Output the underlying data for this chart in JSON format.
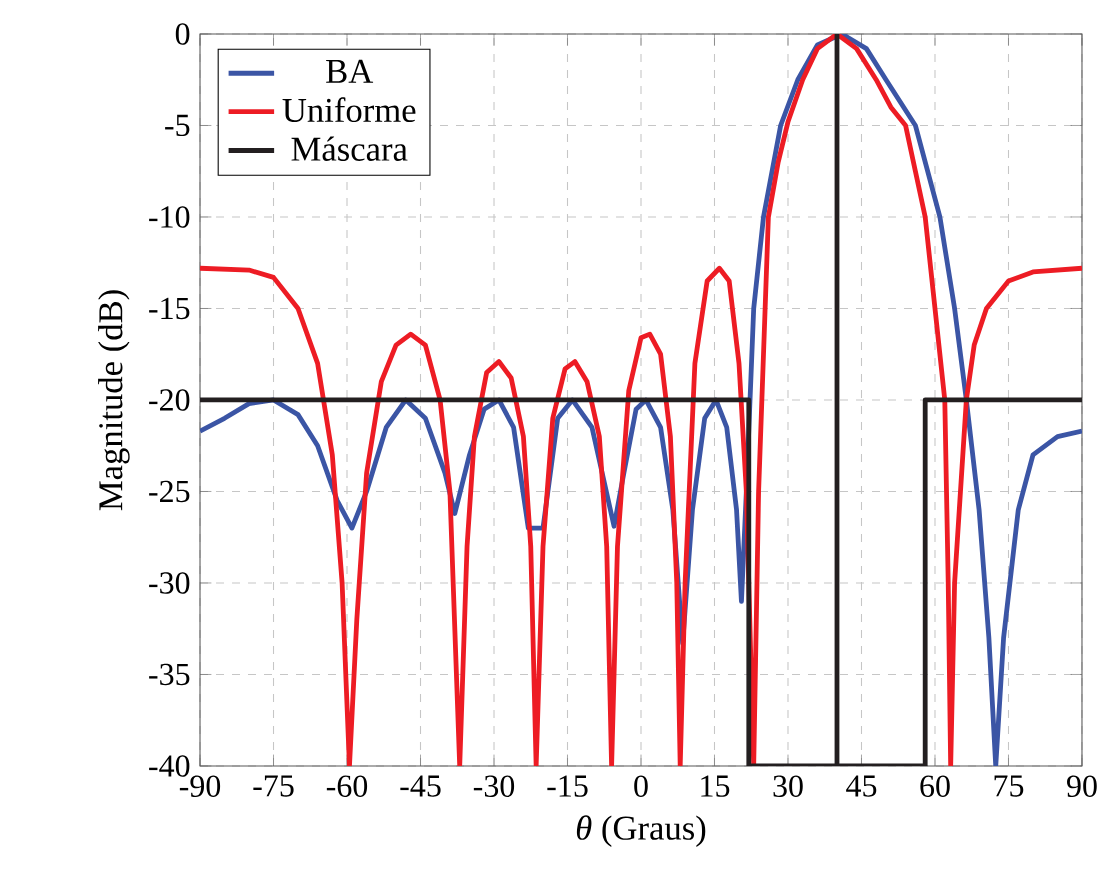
{
  "chart_data": {
    "type": "line",
    "xlabel": "*θ* (Graus)",
    "ylabel": "Magnitude (dB)",
    "xlim": [
      -90,
      90
    ],
    "ylim": [
      -40,
      0
    ],
    "xticks": [
      -90,
      -75,
      -60,
      -45,
      -30,
      -15,
      0,
      15,
      30,
      45,
      60,
      75,
      90
    ],
    "yticks": [
      -40,
      -35,
      -30,
      -25,
      -20,
      -15,
      -10,
      -5,
      0
    ],
    "grid": true,
    "legend": "top left",
    "marker": "none",
    "line_style": "solid",
    "series": [
      {
        "name": "BA",
        "color": "#3b55a5",
        "x": [
          -90,
          -85,
          -80,
          -75,
          -70,
          -66,
          -62,
          -59,
          -56,
          -52,
          -48,
          -44,
          -40,
          -38,
          -35,
          -32,
          -29,
          -26,
          -23,
          -21.4,
          -20,
          -17,
          -14,
          -10,
          -7.5,
          -5.5,
          -3.5,
          -1,
          1,
          4,
          6.5,
          8.5,
          10.5,
          13,
          15.3,
          17.5,
          19.5,
          20.5,
          21.5,
          23,
          25,
          28.5,
          32,
          36,
          41,
          46,
          50,
          56,
          61,
          64,
          66.4,
          69,
          71,
          72.4,
          74,
          77,
          80,
          85,
          90
        ],
        "values": [
          -21.7,
          -21,
          -20.2,
          -20,
          -20.8,
          -22.5,
          -25.5,
          -27,
          -25,
          -21.5,
          -20,
          -21,
          -24,
          -26.2,
          -23,
          -20.5,
          -20,
          -21.5,
          -27,
          null,
          -27,
          -21,
          -20,
          -21.5,
          -24.5,
          -26.9,
          -24,
          -20.5,
          -20,
          -21.5,
          -26,
          -33.3,
          -26,
          -21,
          -20,
          -21.5,
          -26,
          -31,
          -25,
          -15,
          -10,
          -5,
          -2.5,
          -0.6,
          0,
          -0.8,
          -2.5,
          -5,
          -10,
          -15,
          -20,
          -26,
          -33,
          -40,
          -33,
          -26,
          -23,
          -22,
          -21.7
        ]
      },
      {
        "name": "Uniforme",
        "color": "#ed1c24",
        "x": [
          -90,
          -80,
          -75,
          -70,
          -66,
          -63,
          -61,
          -59.5,
          -58,
          -56,
          -53,
          -50,
          -47,
          -44,
          -41,
          -39,
          -37,
          -35.5,
          -34,
          -31.5,
          -29,
          -26.5,
          -24,
          -22.5,
          -21.4,
          -20,
          -18,
          -15.5,
          -13.5,
          -11,
          -8.5,
          -7,
          -6,
          -4.8,
          -2.5,
          0,
          1.8,
          4,
          6,
          7.3,
          8,
          9,
          11,
          13.5,
          16,
          18,
          20,
          21.5,
          22.5,
          23,
          24,
          26,
          28,
          30,
          33,
          36,
          40,
          44,
          48,
          51,
          54,
          56,
          58,
          60,
          62,
          62.7,
          63.2,
          64,
          66.4,
          68,
          70.5,
          75,
          80,
          90
        ],
        "values": [
          -12.8,
          -12.9,
          -13.3,
          -15,
          -18,
          -23,
          -30,
          -40,
          -32,
          -24,
          -19,
          -17,
          -16.4,
          -17,
          -20,
          -25,
          -40,
          -28,
          -22,
          -18.5,
          -17.9,
          -18.8,
          -22,
          -28,
          -40,
          -28,
          -21,
          -18.3,
          -17.9,
          -19,
          -22,
          -28,
          -40,
          -28,
          -19.5,
          -16.6,
          -16.4,
          -17.5,
          -22,
          -30,
          -40,
          -30,
          -18,
          -13.5,
          -12.8,
          -13.5,
          -18,
          -25,
          -35,
          -40,
          -25,
          -10,
          -7,
          -4.8,
          -2.5,
          -0.8,
          0,
          -0.8,
          -2.5,
          -4,
          -5,
          -7.5,
          -10,
          -15,
          -20,
          -30,
          -40,
          -30,
          -20,
          -17,
          -15,
          -13.5,
          -13,
          -12.8
        ]
      },
      {
        "name": "Máscara",
        "color": "#231f20",
        "x": [
          -90,
          22,
          22,
          40,
          40,
          40,
          58,
          58,
          90
        ],
        "values": [
          -20,
          -20,
          -40,
          -40,
          0,
          -40,
          -40,
          -20,
          -20
        ]
      }
    ]
  }
}
